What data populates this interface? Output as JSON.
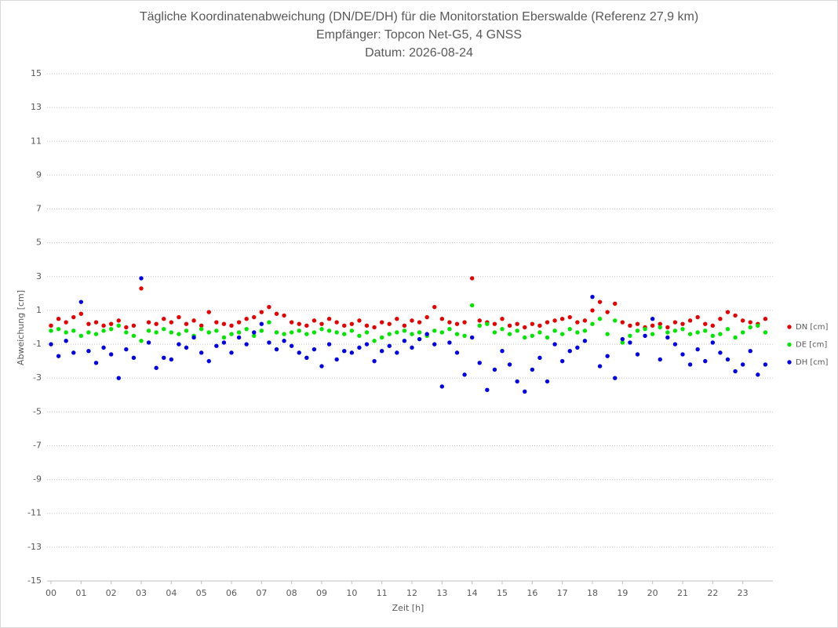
{
  "chart_data": {
    "type": "scatter",
    "title": "Tägliche Koordinatenabweichung (DN/DE/DH) für die Monitorstation Eberswalde (Referenz 27,9 km)",
    "subtitle": "Empfänger: Topcon Net-G5, 4 GNSS",
    "date": "Datum: 2026-08-24",
    "xlabel": "Zeit [h]",
    "ylabel": "Abweichung [cm]",
    "xlim": [
      0,
      24
    ],
    "ylim": [
      -15,
      15
    ],
    "yticks": [
      -15,
      -13,
      -11,
      -9,
      -7,
      -5,
      -3,
      -1,
      1,
      3,
      5,
      7,
      9,
      11,
      13,
      15
    ],
    "xticks": [
      {
        "value": 0,
        "label": "00"
      },
      {
        "value": 1,
        "label": "01"
      },
      {
        "value": 2,
        "label": "02"
      },
      {
        "value": 3,
        "label": "03"
      },
      {
        "value": 4,
        "label": "04"
      },
      {
        "value": 5,
        "label": "05"
      },
      {
        "value": 6,
        "label": "06"
      },
      {
        "value": 7,
        "label": "07"
      },
      {
        "value": 8,
        "label": "08"
      },
      {
        "value": 9,
        "label": "09"
      },
      {
        "value": 10,
        "label": "10"
      },
      {
        "value": 11,
        "label": "11"
      },
      {
        "value": 12,
        "label": "12"
      },
      {
        "value": 13,
        "label": "13"
      },
      {
        "value": 14,
        "label": "14"
      },
      {
        "value": 15,
        "label": "15"
      },
      {
        "value": 16,
        "label": "16"
      },
      {
        "value": 17,
        "label": "17"
      },
      {
        "value": 18,
        "label": "18"
      },
      {
        "value": 19,
        "label": "19"
      },
      {
        "value": 20,
        "label": "20"
      },
      {
        "value": 21,
        "label": "21"
      },
      {
        "value": 22,
        "label": "22"
      },
      {
        "value": 23,
        "label": "23"
      }
    ],
    "grid": true,
    "legend": "right",
    "x": [
      0,
      0.25,
      0.5,
      0.75,
      1,
      1.25,
      1.5,
      1.75,
      2,
      2.25,
      2.5,
      2.75,
      3,
      3.25,
      3.5,
      3.75,
      4,
      4.25,
      4.5,
      4.75,
      5,
      5.25,
      5.5,
      5.75,
      6,
      6.25,
      6.5,
      6.75,
      7,
      7.25,
      7.5,
      7.75,
      8,
      8.25,
      8.5,
      8.75,
      9,
      9.25,
      9.5,
      9.75,
      10,
      10.25,
      10.5,
      10.75,
      11,
      11.25,
      11.5,
      11.75,
      12,
      12.25,
      12.5,
      12.75,
      13,
      13.25,
      13.5,
      13.75,
      14,
      14.25,
      14.5,
      14.75,
      15,
      15.25,
      15.5,
      15.75,
      16,
      16.25,
      16.5,
      16.75,
      17,
      17.25,
      17.5,
      17.75,
      18,
      18.25,
      18.5,
      18.75,
      19,
      19.25,
      19.5,
      19.75,
      20,
      20.25,
      20.5,
      20.75,
      21,
      21.25,
      21.5,
      21.75,
      22,
      22.25,
      22.5,
      22.75,
      23,
      23.25,
      23.5,
      23.75
    ],
    "series": [
      {
        "name": "DN [cm]",
        "color": "#e60000",
        "values": [
          0.1,
          0.5,
          0.3,
          0.6,
          0.8,
          0.2,
          0.3,
          0.1,
          0.2,
          0.4,
          0.0,
          0.1,
          2.3,
          0.3,
          0.2,
          0.5,
          0.3,
          0.6,
          0.2,
          0.4,
          0.1,
          0.9,
          0.3,
          0.2,
          0.1,
          0.3,
          0.5,
          0.6,
          0.9,
          1.2,
          0.8,
          0.7,
          0.3,
          0.2,
          0.1,
          0.4,
          0.2,
          0.5,
          0.3,
          0.1,
          0.2,
          0.4,
          0.1,
          0.0,
          0.3,
          0.2,
          0.5,
          0.1,
          0.4,
          0.3,
          0.6,
          1.2,
          0.5,
          0.3,
          0.2,
          0.3,
          2.9,
          0.4,
          0.3,
          0.2,
          0.5,
          0.1,
          0.2,
          0.0,
          0.2,
          0.1,
          0.3,
          0.4,
          0.5,
          0.6,
          0.3,
          0.4,
          1.0,
          1.5,
          0.9,
          1.4,
          0.3,
          0.1,
          0.2,
          0.0,
          0.1,
          0.2,
          0.0,
          0.3,
          0.2,
          0.4,
          0.6,
          0.2,
          0.1,
          0.5,
          0.9,
          0.7,
          0.4,
          0.3,
          0.2,
          0.5
        ]
      },
      {
        "name": "DE [cm]",
        "color": "#00e600",
        "values": [
          -0.2,
          -0.1,
          -0.3,
          -0.2,
          -0.5,
          -0.3,
          -0.4,
          -0.2,
          -0.1,
          0.1,
          -0.3,
          -0.5,
          -0.8,
          -0.2,
          -0.3,
          -0.1,
          -0.3,
          -0.4,
          -0.2,
          -0.5,
          -0.1,
          -0.3,
          -0.2,
          -0.6,
          -0.4,
          -0.3,
          -0.1,
          -0.5,
          -0.2,
          0.3,
          -0.3,
          -0.4,
          -0.3,
          -0.2,
          -0.4,
          -0.3,
          -0.1,
          -0.2,
          -0.3,
          -0.4,
          -0.2,
          -0.5,
          -0.3,
          -0.8,
          -0.6,
          -0.4,
          -0.3,
          -0.2,
          -0.4,
          -0.3,
          -0.5,
          -0.2,
          -0.3,
          -0.1,
          -0.4,
          -0.5,
          1.3,
          0.1,
          0.2,
          -0.3,
          -0.1,
          -0.4,
          -0.2,
          -0.6,
          -0.5,
          -0.3,
          -0.6,
          -0.2,
          -0.4,
          -0.1,
          -0.3,
          -0.2,
          0.2,
          0.5,
          -0.4,
          0.4,
          -0.9,
          -0.5,
          -0.2,
          -0.1,
          -0.4,
          0.0,
          -0.3,
          -0.2,
          -0.1,
          -0.4,
          -0.3,
          -0.2,
          -0.5,
          -0.4,
          -0.1,
          -0.6,
          -0.3,
          0.0,
          0.1,
          -0.3
        ]
      },
      {
        "name": "DH [cm]",
        "color": "#0000e6",
        "values": [
          -1.0,
          -1.7,
          -0.8,
          -1.5,
          1.5,
          -1.4,
          -2.1,
          -1.2,
          -1.6,
          -3.0,
          -1.3,
          -1.8,
          2.9,
          -0.9,
          -2.4,
          -1.8,
          -1.9,
          -1.0,
          -1.2,
          -0.6,
          -1.5,
          -2.0,
          -1.1,
          -0.9,
          -1.5,
          -0.6,
          -1.0,
          -0.3,
          0.2,
          -0.9,
          -1.3,
          -0.8,
          -1.1,
          -1.5,
          -1.8,
          -1.3,
          -2.3,
          -1.0,
          -1.9,
          -1.4,
          -1.5,
          -1.2,
          -1.0,
          -2.0,
          -1.4,
          -1.1,
          -1.5,
          -0.8,
          -1.2,
          -0.7,
          -0.4,
          -1.0,
          -3.5,
          -0.9,
          -1.5,
          -2.8,
          -0.6,
          -2.1,
          -3.7,
          -2.5,
          -1.4,
          -2.2,
          -3.2,
          -3.8,
          -2.5,
          -1.8,
          -3.2,
          -1.0,
          -2.0,
          -1.4,
          -1.2,
          -0.8,
          1.8,
          -2.3,
          -1.7,
          -3.0,
          -0.7,
          -0.9,
          -1.6,
          -0.5,
          0.5,
          -1.9,
          -0.6,
          -1.0,
          -1.6,
          -2.2,
          -1.3,
          -2.0,
          -0.9,
          -1.5,
          -1.9,
          -2.6,
          -2.2,
          -1.4,
          -2.8,
          -2.2
        ]
      }
    ]
  }
}
